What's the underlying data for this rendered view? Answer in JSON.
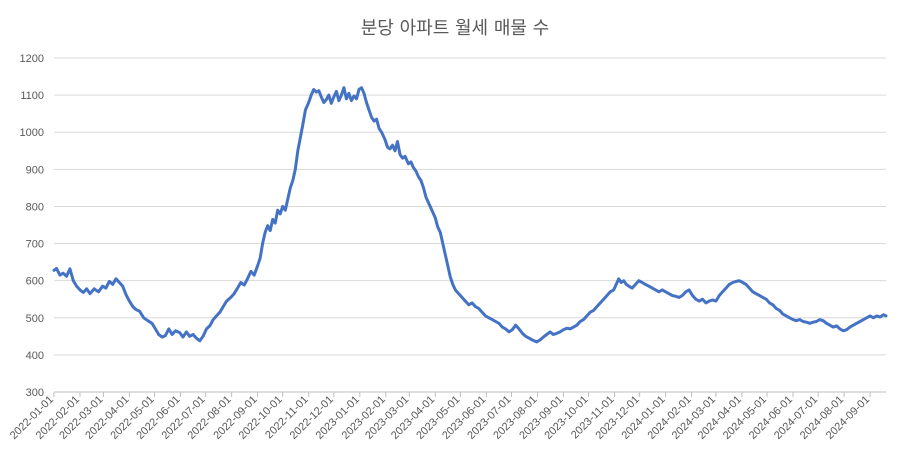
{
  "chart_data": {
    "type": "line",
    "title": "분당 아파트 월세 매물 수",
    "xlabel": "",
    "ylabel": "",
    "ylim": [
      300,
      1200
    ],
    "yticks": [
      300,
      400,
      500,
      600,
      700,
      800,
      900,
      1000,
      1100,
      1200
    ],
    "xlim": [
      "2022-01-01",
      "2024-09-20"
    ],
    "xticks": [
      "2022-01-01",
      "2022-02-01",
      "2022-03-01",
      "2022-04-01",
      "2022-05-01",
      "2022-06-01",
      "2022-07-01",
      "2022-08-01",
      "2022-09-01",
      "2022-10-01",
      "2022-11-01",
      "2022-12-01",
      "2023-01-01",
      "2023-02-01",
      "2023-03-01",
      "2023-04-01",
      "2023-05-01",
      "2023-06-01",
      "2023-07-01",
      "2023-08-01",
      "2023-09-01",
      "2023-10-01",
      "2023-11-01",
      "2023-12-01",
      "2024-01-01",
      "2024-02-01",
      "2024-03-01",
      "2024-04-01",
      "2024-05-01",
      "2024-06-01",
      "2024-07-01",
      "2024-08-01",
      "2024-09-01"
    ],
    "grid": true,
    "legend": "none",
    "series": [
      {
        "name": "",
        "color": "#4472c4",
        "points": [
          [
            "2022-01-01",
            628
          ],
          [
            "2022-01-04",
            633
          ],
          [
            "2022-01-08",
            615
          ],
          [
            "2022-01-12",
            620
          ],
          [
            "2022-01-16",
            612
          ],
          [
            "2022-01-20",
            632
          ],
          [
            "2022-01-24",
            600
          ],
          [
            "2022-01-28",
            585
          ],
          [
            "2022-02-01",
            575
          ],
          [
            "2022-02-05",
            568
          ],
          [
            "2022-02-09",
            578
          ],
          [
            "2022-02-13",
            565
          ],
          [
            "2022-02-18",
            578
          ],
          [
            "2022-02-23",
            570
          ],
          [
            "2022-02-28",
            585
          ],
          [
            "2022-03-04",
            580
          ],
          [
            "2022-03-08",
            598
          ],
          [
            "2022-03-12",
            590
          ],
          [
            "2022-03-16",
            605
          ],
          [
            "2022-03-20",
            595
          ],
          [
            "2022-03-24",
            585
          ],
          [
            "2022-03-28",
            562
          ],
          [
            "2022-04-01",
            545
          ],
          [
            "2022-04-05",
            530
          ],
          [
            "2022-04-09",
            522
          ],
          [
            "2022-04-13",
            518
          ],
          [
            "2022-04-18",
            500
          ],
          [
            "2022-04-23",
            492
          ],
          [
            "2022-04-28",
            485
          ],
          [
            "2022-05-02",
            470
          ],
          [
            "2022-05-06",
            455
          ],
          [
            "2022-05-10",
            448
          ],
          [
            "2022-05-14",
            452
          ],
          [
            "2022-05-18",
            470
          ],
          [
            "2022-05-22",
            455
          ],
          [
            "2022-05-26",
            465
          ],
          [
            "2022-05-31",
            460
          ],
          [
            "2022-06-04",
            448
          ],
          [
            "2022-06-08",
            462
          ],
          [
            "2022-06-12",
            450
          ],
          [
            "2022-06-16",
            455
          ],
          [
            "2022-06-20",
            445
          ],
          [
            "2022-06-24",
            438
          ],
          [
            "2022-06-28",
            450
          ],
          [
            "2022-07-02",
            470
          ],
          [
            "2022-07-06",
            478
          ],
          [
            "2022-07-10",
            495
          ],
          [
            "2022-07-14",
            505
          ],
          [
            "2022-07-18",
            515
          ],
          [
            "2022-07-22",
            530
          ],
          [
            "2022-07-26",
            545
          ],
          [
            "2022-07-31",
            555
          ],
          [
            "2022-08-04",
            565
          ],
          [
            "2022-08-08",
            580
          ],
          [
            "2022-08-12",
            595
          ],
          [
            "2022-08-16",
            588
          ],
          [
            "2022-08-20",
            605
          ],
          [
            "2022-08-24",
            625
          ],
          [
            "2022-08-28",
            615
          ],
          [
            "2022-09-01",
            640
          ],
          [
            "2022-09-04",
            660
          ],
          [
            "2022-09-07",
            700
          ],
          [
            "2022-09-10",
            730
          ],
          [
            "2022-09-13",
            748
          ],
          [
            "2022-09-16",
            735
          ],
          [
            "2022-09-19",
            765
          ],
          [
            "2022-09-22",
            755
          ],
          [
            "2022-09-25",
            790
          ],
          [
            "2022-09-28",
            780
          ],
          [
            "2022-10-01",
            800
          ],
          [
            "2022-10-04",
            790
          ],
          [
            "2022-10-07",
            820
          ],
          [
            "2022-10-10",
            850
          ],
          [
            "2022-10-13",
            870
          ],
          [
            "2022-10-16",
            900
          ],
          [
            "2022-10-19",
            950
          ],
          [
            "2022-10-22",
            985
          ],
          [
            "2022-10-25",
            1020
          ],
          [
            "2022-10-28",
            1060
          ],
          [
            "2022-11-01",
            1080
          ],
          [
            "2022-11-04",
            1100
          ],
          [
            "2022-11-07",
            1115
          ],
          [
            "2022-11-10",
            1108
          ],
          [
            "2022-11-13",
            1112
          ],
          [
            "2022-11-16",
            1095
          ],
          [
            "2022-11-19",
            1080
          ],
          [
            "2022-11-22",
            1088
          ],
          [
            "2022-11-25",
            1100
          ],
          [
            "2022-11-28",
            1078
          ],
          [
            "2022-12-01",
            1095
          ],
          [
            "2022-12-04",
            1110
          ],
          [
            "2022-12-07",
            1085
          ],
          [
            "2022-12-10",
            1100
          ],
          [
            "2022-12-13",
            1120
          ],
          [
            "2022-12-16",
            1090
          ],
          [
            "2022-12-19",
            1105
          ],
          [
            "2022-12-22",
            1085
          ],
          [
            "2022-12-25",
            1098
          ],
          [
            "2022-12-28",
            1090
          ],
          [
            "2022-12-31",
            1115
          ],
          [
            "2023-01-03",
            1120
          ],
          [
            "2023-01-06",
            1105
          ],
          [
            "2023-01-09",
            1080
          ],
          [
            "2023-01-12",
            1060
          ],
          [
            "2023-01-15",
            1040
          ],
          [
            "2023-01-18",
            1030
          ],
          [
            "2023-01-21",
            1035
          ],
          [
            "2023-01-24",
            1010
          ],
          [
            "2023-01-27",
            1000
          ],
          [
            "2023-01-31",
            980
          ],
          [
            "2023-02-03",
            960
          ],
          [
            "2023-02-06",
            955
          ],
          [
            "2023-02-09",
            965
          ],
          [
            "2023-02-12",
            950
          ],
          [
            "2023-02-15",
            975
          ],
          [
            "2023-02-18",
            940
          ],
          [
            "2023-02-21",
            930
          ],
          [
            "2023-02-24",
            935
          ],
          [
            "2023-02-28",
            915
          ],
          [
            "2023-03-03",
            920
          ],
          [
            "2023-03-06",
            905
          ],
          [
            "2023-03-09",
            895
          ],
          [
            "2023-03-12",
            880
          ],
          [
            "2023-03-15",
            870
          ],
          [
            "2023-03-18",
            850
          ],
          [
            "2023-03-21",
            825
          ],
          [
            "2023-03-24",
            810
          ],
          [
            "2023-03-28",
            790
          ],
          [
            "2023-04-01",
            770
          ],
          [
            "2023-04-04",
            745
          ],
          [
            "2023-04-07",
            730
          ],
          [
            "2023-04-10",
            700
          ],
          [
            "2023-04-13",
            670
          ],
          [
            "2023-04-16",
            640
          ],
          [
            "2023-04-19",
            610
          ],
          [
            "2023-04-22",
            590
          ],
          [
            "2023-04-25",
            575
          ],
          [
            "2023-04-29",
            565
          ],
          [
            "2023-05-03",
            555
          ],
          [
            "2023-05-07",
            545
          ],
          [
            "2023-05-11",
            535
          ],
          [
            "2023-05-15",
            540
          ],
          [
            "2023-05-19",
            530
          ],
          [
            "2023-05-23",
            525
          ],
          [
            "2023-05-27",
            515
          ],
          [
            "2023-05-31",
            505
          ],
          [
            "2023-06-04",
            500
          ],
          [
            "2023-06-08",
            495
          ],
          [
            "2023-06-12",
            490
          ],
          [
            "2023-06-16",
            485
          ],
          [
            "2023-06-20",
            475
          ],
          [
            "2023-06-24",
            470
          ],
          [
            "2023-06-28",
            462
          ],
          [
            "2023-07-02",
            468
          ],
          [
            "2023-07-06",
            480
          ],
          [
            "2023-07-10",
            470
          ],
          [
            "2023-07-14",
            458
          ],
          [
            "2023-07-18",
            450
          ],
          [
            "2023-07-22",
            445
          ],
          [
            "2023-07-26",
            440
          ],
          [
            "2023-07-31",
            435
          ],
          [
            "2023-08-04",
            440
          ],
          [
            "2023-08-08",
            448
          ],
          [
            "2023-08-12",
            455
          ],
          [
            "2023-08-16",
            462
          ],
          [
            "2023-08-20",
            455
          ],
          [
            "2023-08-24",
            458
          ],
          [
            "2023-08-28",
            462
          ],
          [
            "2023-09-01",
            468
          ],
          [
            "2023-09-05",
            472
          ],
          [
            "2023-09-09",
            470
          ],
          [
            "2023-09-13",
            475
          ],
          [
            "2023-09-17",
            480
          ],
          [
            "2023-09-21",
            490
          ],
          [
            "2023-09-25",
            495
          ],
          [
            "2023-09-29",
            505
          ],
          [
            "2023-10-03",
            515
          ],
          [
            "2023-10-07",
            520
          ],
          [
            "2023-10-11",
            530
          ],
          [
            "2023-10-15",
            540
          ],
          [
            "2023-10-19",
            550
          ],
          [
            "2023-10-23",
            560
          ],
          [
            "2023-10-27",
            570
          ],
          [
            "2023-10-31",
            575
          ],
          [
            "2023-11-03",
            590
          ],
          [
            "2023-11-06",
            605
          ],
          [
            "2023-11-09",
            595
          ],
          [
            "2023-11-12",
            600
          ],
          [
            "2023-11-15",
            590
          ],
          [
            "2023-11-18",
            585
          ],
          [
            "2023-11-22",
            580
          ],
          [
            "2023-11-26",
            590
          ],
          [
            "2023-11-30",
            600
          ],
          [
            "2023-12-04",
            595
          ],
          [
            "2023-12-08",
            590
          ],
          [
            "2023-12-12",
            585
          ],
          [
            "2023-12-16",
            580
          ],
          [
            "2023-12-20",
            575
          ],
          [
            "2023-12-24",
            570
          ],
          [
            "2023-12-28",
            575
          ],
          [
            "2024-01-01",
            570
          ],
          [
            "2024-01-05",
            565
          ],
          [
            "2024-01-09",
            560
          ],
          [
            "2024-01-13",
            558
          ],
          [
            "2024-01-17",
            555
          ],
          [
            "2024-01-21",
            560
          ],
          [
            "2024-01-25",
            570
          ],
          [
            "2024-01-29",
            575
          ],
          [
            "2024-02-02",
            560
          ],
          [
            "2024-02-06",
            550
          ],
          [
            "2024-02-10",
            545
          ],
          [
            "2024-02-14",
            550
          ],
          [
            "2024-02-18",
            540
          ],
          [
            "2024-02-22",
            545
          ],
          [
            "2024-02-26",
            548
          ],
          [
            "2024-03-01",
            545
          ],
          [
            "2024-03-05",
            560
          ],
          [
            "2024-03-09",
            570
          ],
          [
            "2024-03-13",
            580
          ],
          [
            "2024-03-17",
            590
          ],
          [
            "2024-03-21",
            595
          ],
          [
            "2024-03-25",
            598
          ],
          [
            "2024-03-29",
            600
          ],
          [
            "2024-04-02",
            595
          ],
          [
            "2024-04-06",
            590
          ],
          [
            "2024-04-10",
            580
          ],
          [
            "2024-04-14",
            570
          ],
          [
            "2024-04-18",
            565
          ],
          [
            "2024-04-22",
            560
          ],
          [
            "2024-04-26",
            555
          ],
          [
            "2024-04-30",
            550
          ],
          [
            "2024-05-04",
            540
          ],
          [
            "2024-05-08",
            535
          ],
          [
            "2024-05-12",
            525
          ],
          [
            "2024-05-16",
            520
          ],
          [
            "2024-05-20",
            510
          ],
          [
            "2024-05-24",
            505
          ],
          [
            "2024-05-28",
            500
          ],
          [
            "2024-06-01",
            495
          ],
          [
            "2024-06-05",
            492
          ],
          [
            "2024-06-09",
            495
          ],
          [
            "2024-06-13",
            490
          ],
          [
            "2024-06-17",
            488
          ],
          [
            "2024-06-21",
            485
          ],
          [
            "2024-06-25",
            488
          ],
          [
            "2024-06-29",
            490
          ],
          [
            "2024-07-03",
            495
          ],
          [
            "2024-07-07",
            492
          ],
          [
            "2024-07-11",
            485
          ],
          [
            "2024-07-15",
            480
          ],
          [
            "2024-07-19",
            475
          ],
          [
            "2024-07-23",
            478
          ],
          [
            "2024-07-27",
            470
          ],
          [
            "2024-07-31",
            465
          ],
          [
            "2024-08-04",
            468
          ],
          [
            "2024-08-08",
            475
          ],
          [
            "2024-08-12",
            480
          ],
          [
            "2024-08-16",
            485
          ],
          [
            "2024-08-20",
            490
          ],
          [
            "2024-08-24",
            495
          ],
          [
            "2024-08-28",
            500
          ],
          [
            "2024-09-01",
            505
          ],
          [
            "2024-09-05",
            500
          ],
          [
            "2024-09-09",
            505
          ],
          [
            "2024-09-13",
            502
          ],
          [
            "2024-09-17",
            508
          ],
          [
            "2024-09-20",
            505
          ]
        ]
      }
    ]
  }
}
